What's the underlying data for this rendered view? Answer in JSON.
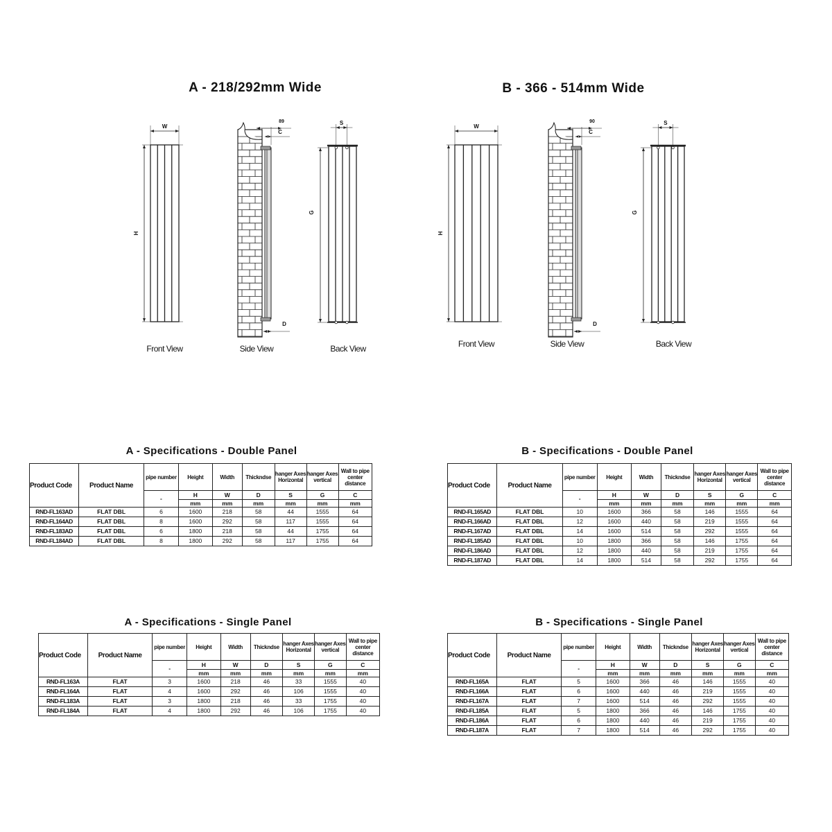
{
  "sections": {
    "a": {
      "title": "A - 218/292mm Wide",
      "views": {
        "front": "Front View",
        "side": "Side View",
        "back": "Back View"
      },
      "dims": {
        "w": "W",
        "h": "H",
        "offset": "89",
        "c": "C",
        "d": "D",
        "s": "S",
        "g": "G"
      }
    },
    "b": {
      "title": "B - 366 - 514mm Wide",
      "views": {
        "front": "Front View",
        "side": "Side View",
        "back": "Back View"
      },
      "dims": {
        "w": "W",
        "h": "H",
        "offset": "90",
        "c": "C",
        "d": "D",
        "s": "S",
        "g": "G"
      }
    }
  },
  "header": {
    "product_code": "Product Code",
    "product_name": "Product Name",
    "columns": [
      {
        "label": "pipe number",
        "symbol": "-",
        "unit": ""
      },
      {
        "label": "Height",
        "symbol": "H",
        "unit": "mm"
      },
      {
        "label": "Width",
        "symbol": "W",
        "unit": "mm"
      },
      {
        "label": "Thickndse",
        "symbol": "D",
        "unit": "mm"
      },
      {
        "label": "hanger Axes Horizontal",
        "symbol": "S",
        "unit": "mm"
      },
      {
        "label": "hanger Axes vertical",
        "symbol": "G",
        "unit": "mm"
      },
      {
        "label": "Wall to pipe center distance",
        "symbol": "C",
        "unit": "mm"
      }
    ]
  },
  "tables": {
    "a_double": {
      "title": "A - Specifications - Double Panel",
      "rows": [
        [
          "RND-FL163AD",
          "FLAT DBL",
          "6",
          "1600",
          "218",
          "58",
          "44",
          "1555",
          "64"
        ],
        [
          "RND-FL164AD",
          "FLAT DBL",
          "8",
          "1600",
          "292",
          "58",
          "117",
          "1555",
          "64"
        ],
        [
          "RND-FL183AD",
          "FLAT DBL",
          "6",
          "1800",
          "218",
          "58",
          "44",
          "1755",
          "64"
        ],
        [
          "RND-FL184AD",
          "FLAT DBL",
          "8",
          "1800",
          "292",
          "58",
          "117",
          "1755",
          "64"
        ]
      ]
    },
    "b_double": {
      "title": "B - Specifications - Double Panel",
      "rows": [
        [
          "RND-FL165AD",
          "FLAT DBL",
          "10",
          "1600",
          "366",
          "58",
          "146",
          "1555",
          "64"
        ],
        [
          "RND-FL166AD",
          "FLAT DBL",
          "12",
          "1600",
          "440",
          "58",
          "219",
          "1555",
          "64"
        ],
        [
          "RND-FL167AD",
          "FLAT DBL",
          "14",
          "1600",
          "514",
          "58",
          "292",
          "1555",
          "64"
        ],
        [
          "RND-FL185AD",
          "FLAT DBL",
          "10",
          "1800",
          "366",
          "58",
          "146",
          "1755",
          "64"
        ],
        [
          "RND-FL186AD",
          "FLAT DBL",
          "12",
          "1800",
          "440",
          "58",
          "219",
          "1755",
          "64"
        ],
        [
          "RND-FL187AD",
          "FLAT DBL",
          "14",
          "1800",
          "514",
          "58",
          "292",
          "1755",
          "64"
        ]
      ]
    },
    "a_single": {
      "title": "A - Specifications - Single Panel",
      "rows": [
        [
          "RND-FL163A",
          "FLAT",
          "3",
          "1600",
          "218",
          "46",
          "33",
          "1555",
          "40"
        ],
        [
          "RND-FL164A",
          "FLAT",
          "4",
          "1600",
          "292",
          "46",
          "106",
          "1555",
          "40"
        ],
        [
          "RND-FL183A",
          "FLAT",
          "3",
          "1800",
          "218",
          "46",
          "33",
          "1755",
          "40"
        ],
        [
          "RND-FL184A",
          "FLAT",
          "4",
          "1800",
          "292",
          "46",
          "106",
          "1755",
          "40"
        ]
      ]
    },
    "b_single": {
      "title": "B - Specifications - Single Panel",
      "rows": [
        [
          "RND-FL165A",
          "FLAT",
          "5",
          "1600",
          "366",
          "46",
          "146",
          "1555",
          "40"
        ],
        [
          "RND-FL166A",
          "FLAT",
          "6",
          "1600",
          "440",
          "46",
          "219",
          "1555",
          "40"
        ],
        [
          "RND-FL167A",
          "FLAT",
          "7",
          "1600",
          "514",
          "46",
          "292",
          "1555",
          "40"
        ],
        [
          "RND-FL185A",
          "FLAT",
          "5",
          "1800",
          "366",
          "46",
          "146",
          "1755",
          "40"
        ],
        [
          "RND-FL186A",
          "FLAT",
          "6",
          "1800",
          "440",
          "46",
          "219",
          "1755",
          "40"
        ],
        [
          "RND-FL187A",
          "FLAT",
          "7",
          "1800",
          "514",
          "46",
          "292",
          "1755",
          "40"
        ]
      ]
    }
  }
}
